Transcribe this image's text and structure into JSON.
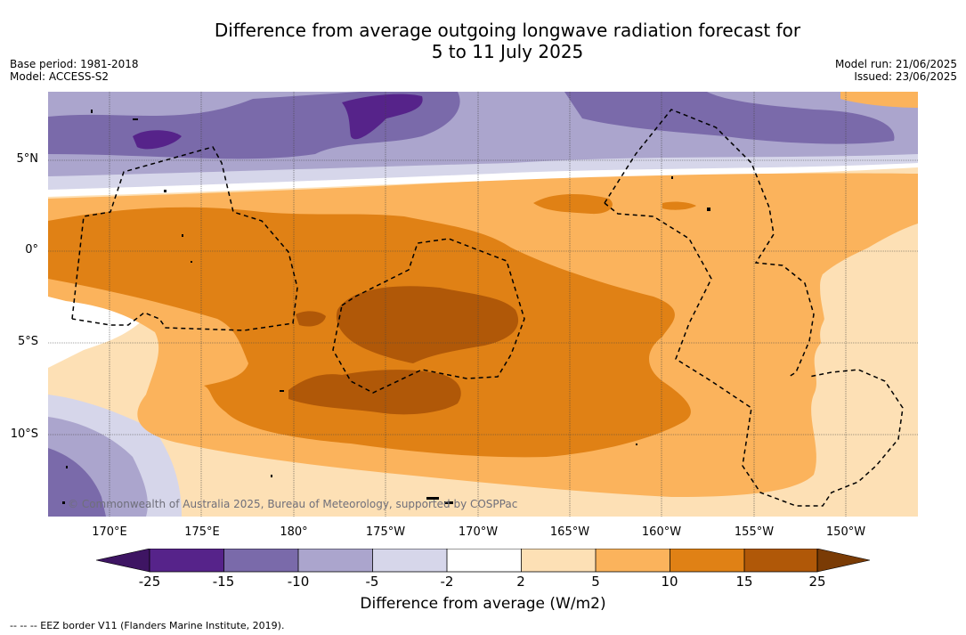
{
  "title": {
    "line1": "Difference from average outgoing longwave radiation forecast for",
    "line2": "5 to 11 July 2025"
  },
  "meta": {
    "base_period": "Base period: 1981-2018",
    "model": "Model: ACCESS-S2",
    "model_run": "Model run: 21/06/2025",
    "issued": "Issued: 23/06/2025"
  },
  "map": {
    "lat_labels": [
      "5°N",
      "0°",
      "5°S",
      "10°S"
    ],
    "lon_labels": [
      "170°E",
      "175°E",
      "180°",
      "175°W",
      "170°W",
      "165°W",
      "160°W",
      "155°W",
      "150°W"
    ],
    "copyright": "© Commonwealth of Australia 2025, Bureau of Meteorology, supported by COSPPac",
    "colors": {
      "neg25": "#3e1563",
      "neg15_25": "#56238a",
      "neg10_15": "#7a6aaa",
      "neg5_10": "#aba5cd",
      "neg2_5": "#d6d6ea",
      "neutral": "#ffffff",
      "pos2_5": "#fde0b5",
      "pos5_10": "#fbb35c",
      "pos10_15": "#e08115",
      "pos15_25": "#b05808",
      "pos25": "#7a3b05"
    }
  },
  "colorbar": {
    "ticks": [
      "-25",
      "-15",
      "-10",
      "-5",
      "-2",
      "2",
      "5",
      "10",
      "15",
      "25"
    ],
    "label": "Difference from average (W/m2)"
  },
  "legend": {
    "eez": "--  --  -- EEZ border V11 (Flanders Marine Institute, 2019)."
  }
}
